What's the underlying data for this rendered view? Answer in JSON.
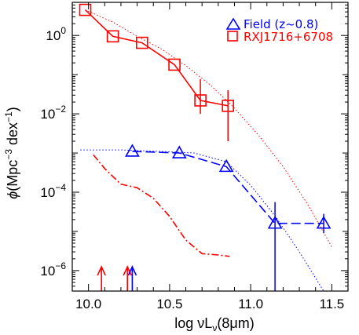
{
  "chart_data": {
    "type": "line",
    "title": "",
    "xlabel": "log νLν(8μm)",
    "xlabel_parts": {
      "prefix": "log νL",
      "sub": "ν",
      "suffix": "(8μm)"
    },
    "ylabel": "ϕ(Mpc⁻³ dex⁻¹)",
    "ylabel_parts": {
      "phi": "ϕ",
      "open": "(Mpc",
      "exp1": "−3",
      "mid": " dex",
      "exp2": "−1",
      "close": ")"
    },
    "xlim": [
      9.9,
      11.6
    ],
    "ylim": [
      3e-07,
      7
    ],
    "yscale": "log",
    "x_ticks": [
      10.0,
      10.5,
      11.0,
      11.5
    ],
    "x_tick_labels": [
      "10.0",
      "10.5",
      "11.0",
      "11.5"
    ],
    "y_ticks": [
      1,
      0.01,
      0.0001,
      1e-06
    ],
    "y_tick_labels": [
      {
        "base": "10",
        "exp": "0"
      },
      {
        "base": "10",
        "exp": "−2"
      },
      {
        "base": "10",
        "exp": "−4"
      },
      {
        "base": "10",
        "exp": "−6"
      }
    ],
    "legend_position": "top-right",
    "series": [
      {
        "name": "RXJ1716+6708",
        "color": "#ff0000",
        "marker": "square",
        "line": "solid",
        "x": [
          9.98,
          10.15,
          10.33,
          10.53,
          10.69,
          10.86
        ],
        "y": [
          4.5,
          0.95,
          0.65,
          0.18,
          0.022,
          0.016
        ],
        "yerr_low": [
          0,
          0,
          0,
          0,
          0.012,
          0.014
        ],
        "yerr_high": [
          0,
          0,
          0,
          0,
          0.055,
          0.024
        ]
      },
      {
        "name": "Field (z~0.8)",
        "color": "#0000ff",
        "marker": "triangle",
        "line": "dashed",
        "x": [
          10.27,
          10.56,
          10.85,
          11.15,
          11.45
        ],
        "y": [
          0.0011,
          0.001,
          0.00045,
          1.6e-05,
          1.6e-05
        ],
        "yerr_low": [
          0,
          0,
          0,
          1.6e-05,
          7e-06
        ],
        "yerr_high": [
          0,
          0,
          0,
          4e-05,
          1.2e-05
        ]
      }
    ],
    "fit_curves": [
      {
        "color": "#ff0000",
        "style": "dotted",
        "x": [
          9.98,
          10.15,
          10.3,
          10.45,
          10.6,
          10.75,
          10.9,
          11.05,
          11.2,
          11.35,
          11.5
        ],
        "y": [
          4.5,
          2.2,
          0.95,
          0.45,
          0.17,
          0.055,
          0.014,
          0.0028,
          0.00045,
          5e-05,
          4e-06
        ]
      },
      {
        "color": "#0000ff",
        "style": "dotted",
        "x": [
          9.95,
          10.2,
          10.45,
          10.65,
          10.85,
          11.0,
          11.15,
          11.3,
          11.45
        ],
        "y": [
          0.0012,
          0.0012,
          0.0011,
          0.001,
          0.0006,
          0.00015,
          2.5e-05,
          3e-06,
          3e-07
        ]
      },
      {
        "color": "#ff0000",
        "style": "dashdot",
        "x": [
          10.03,
          10.1,
          10.2,
          10.3,
          10.4,
          10.5,
          10.6,
          10.7,
          10.8,
          10.87
        ],
        "y": [
          0.0009,
          0.0004,
          0.00016,
          0.00013,
          7e-05,
          2.4e-05,
          6e-06,
          2.7e-06,
          2.5e-06,
          2.3e-06
        ]
      }
    ],
    "limit_arrows": [
      {
        "x": 10.08,
        "color": "#ff0000"
      },
      {
        "x": 10.24,
        "color": "#ff0000"
      },
      {
        "x": 10.27,
        "color": "#0000ff"
      }
    ]
  },
  "legend": {
    "field_label": "Field (z~0.8)",
    "cluster_label": "RXJ1716+6708"
  }
}
